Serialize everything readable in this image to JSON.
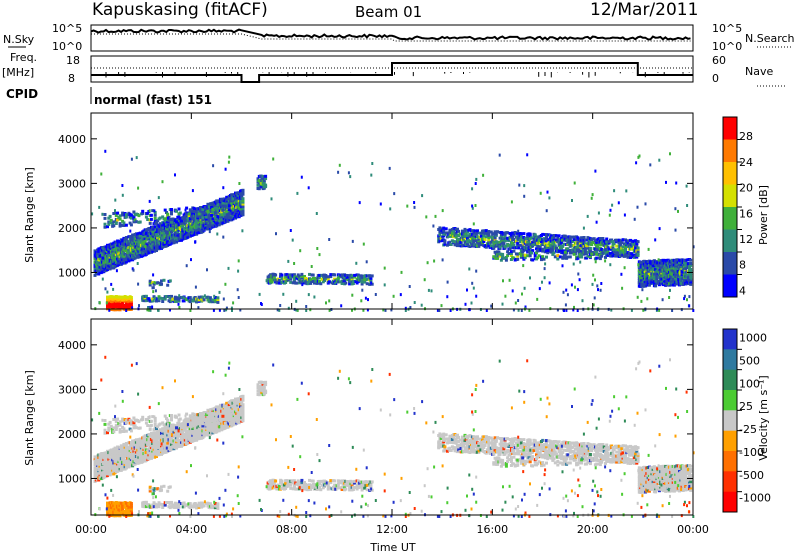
{
  "header": {
    "station": "Kapuskasing (fitACF)",
    "beam": "Beam 01",
    "date": "12/Mar/2011"
  },
  "summary": {
    "nsky_label": "N.Sky",
    "nsky_ticks": [
      "10^5",
      "10^0"
    ],
    "nsearch_label": "N.Search",
    "nsearch_ticks": [
      "10^5",
      "10^0"
    ],
    "freq_label": "Freq.",
    "freq_unit": "[MHz]",
    "freq_ticks": [
      "18",
      "8"
    ],
    "nave_label": "Nave",
    "nave_ticks": [
      "60",
      "0"
    ],
    "cpid_label": "CPID",
    "cpid_value": "normal (fast) 151"
  },
  "chart_data": [
    {
      "type": "heatmap",
      "name": "power",
      "ylabel": "Slant Range [km]",
      "yticks": [
        "4000",
        "3000",
        "2000",
        "1000"
      ],
      "ylim": [
        180,
        4580
      ],
      "colorbar_label": "Power [dB]",
      "colorbar_ticks": [
        "28",
        "24",
        "20",
        "16",
        "12",
        "8",
        "4"
      ],
      "colorbar_colors": [
        "#ff0000",
        "#ff7a00",
        "#ffc000",
        "#d4e000",
        "#40b03a",
        "#2f8c7a",
        "#2a4aa8",
        "#0000ff"
      ]
    },
    {
      "type": "heatmap",
      "name": "velocity",
      "ylabel": "Slant Range [km]",
      "yticks": [
        "4000",
        "3000",
        "2000",
        "1000"
      ],
      "ylim": [
        180,
        4580
      ],
      "colorbar_label": "Velocity [m s⁻¹]",
      "colorbar_ticks": [
        "1000",
        "500",
        "100",
        "25",
        "-25",
        "-100",
        "-500",
        "-1000"
      ],
      "colorbar_colors": [
        "#2233cc",
        "#2f7aa0",
        "#2e8b57",
        "#4ccc33",
        "#c8c8c8",
        "#ffa000",
        "#ff7000",
        "#ff3000",
        "#ff0000"
      ]
    }
  ],
  "x_axis": {
    "label": "Time UT",
    "ticks": [
      "00:00",
      "04:00",
      "08:00",
      "12:00",
      "16:00",
      "20:00",
      "00:00"
    ]
  },
  "colors": {
    "ground_scatter": "#c8c8c8"
  }
}
